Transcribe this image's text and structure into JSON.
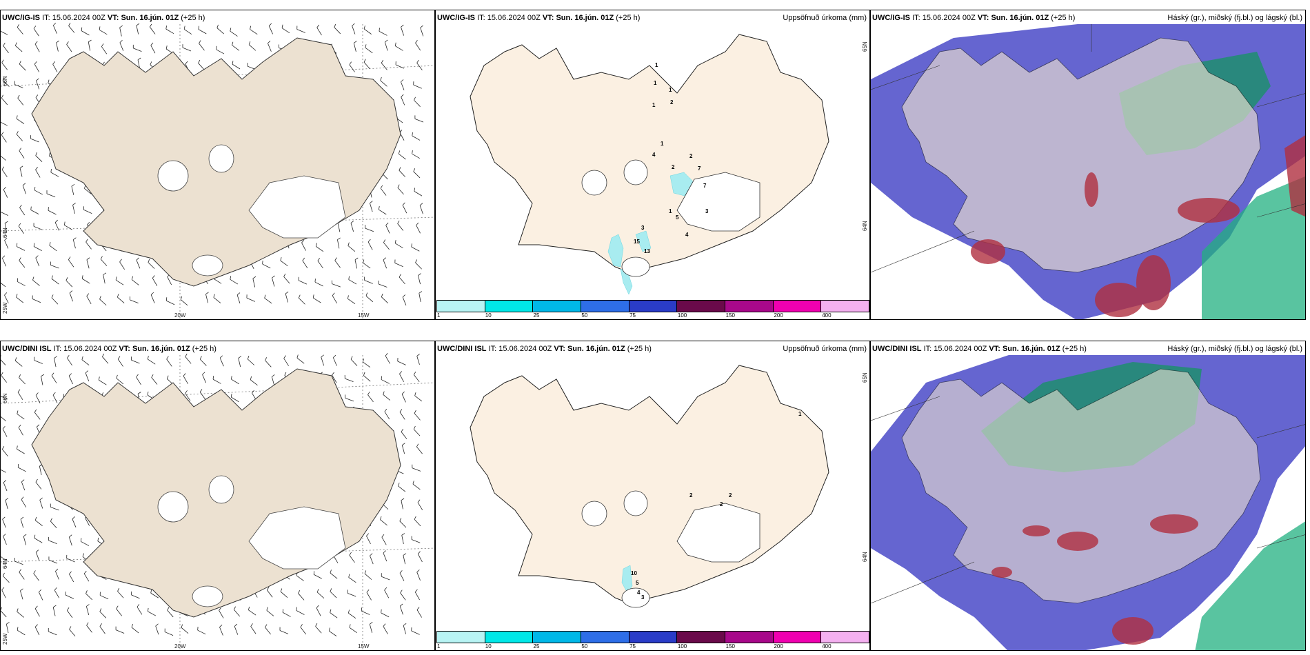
{
  "rows": [
    {
      "model": "UWC/IG-IS",
      "it_label": "IT:",
      "it_value": "15.06.2024 00Z",
      "vt_label": "VT:",
      "vt_value": "Sun. 16.jún. 01Z",
      "lead": "(+25 h)",
      "precip_numbers": [
        "1",
        "1",
        "1",
        "1",
        "2",
        "1",
        "4",
        "2",
        "2",
        "7",
        "7",
        "1",
        "3",
        "5",
        "4",
        "3",
        "15",
        "13"
      ]
    },
    {
      "model": "UWC/DINI ISL",
      "it_label": "IT:",
      "it_value": "15.06.2024 00Z",
      "vt_label": "VT:",
      "vt_value": "Sun. 16.jún. 01Z",
      "lead": "(+25 h)",
      "precip_numbers": [
        "1",
        "2",
        "2",
        "2",
        "10",
        "5",
        "4",
        "3"
      ]
    }
  ],
  "precip_title": "Uppsöfnuð úrkoma (mm)",
  "cloud_title": "Háský (gr.), miðský (fj.bl.) og lágský (bl.)",
  "axis_labels": {
    "lat_66": "66N",
    "lat_64": "64N",
    "lat_65": "65N",
    "lon_25": "25W",
    "lon_20": "20W",
    "lon_15": "15W"
  },
  "colorbar": {
    "labels": [
      "1",
      "10",
      "25",
      "50",
      "75",
      "100",
      "150",
      "200",
      "400"
    ],
    "colors": [
      "#b8f4f4",
      "#00e8e8",
      "#00b8e8",
      "#2e6ee8",
      "#2a3cc8",
      "#6a0a4a",
      "#a8088a",
      "#f000b0",
      "#f4b0f0"
    ]
  },
  "colors": {
    "land": "#ece1d1",
    "land_precip": "#fbf0e2",
    "glacier": "#ffffff",
    "precip_light": "#a8ecf0",
    "cloud_high": "#1e8e6e",
    "cloud_mid": "#3a3ac8",
    "cloud_low": "#b03040"
  }
}
